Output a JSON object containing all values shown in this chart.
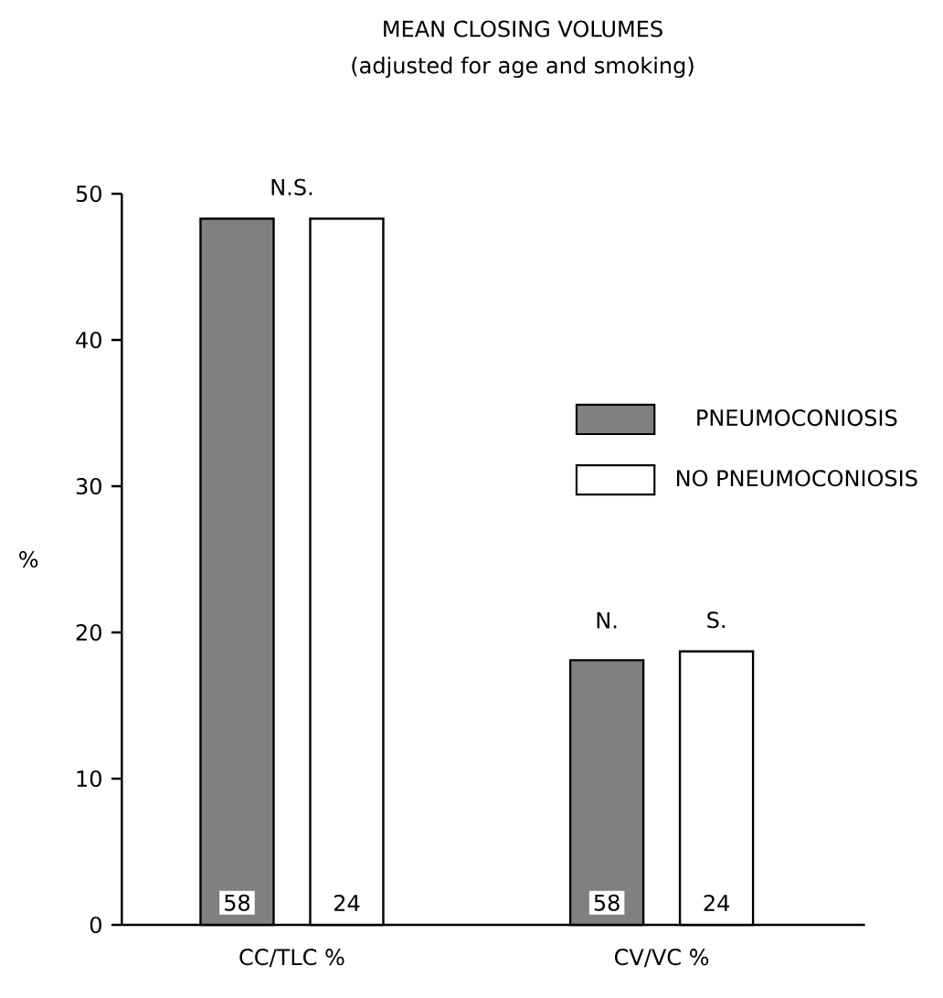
{
  "chart_data": {
    "type": "bar",
    "title": "MEAN CLOSING VOLUMES",
    "subtitle": "(adjusted for age and smoking)",
    "ylabel": "%",
    "categories": [
      "CC/TLC %",
      "CV/VC %"
    ],
    "series": [
      {
        "name": "PNEUMOCONIOSIS",
        "color": "#808080",
        "values": [
          48.3,
          18.1
        ]
      },
      {
        "name": "NO PNEUMOCONIOSIS",
        "color": "#ffffff",
        "values": [
          48.3,
          18.7
        ]
      }
    ],
    "ylim": [
      0,
      50
    ],
    "yticks": [
      0,
      10,
      20,
      30,
      40,
      50
    ],
    "grid": false,
    "legend": "right",
    "annotations": [
      "N.S.",
      "58",
      "24",
      "N.",
      "S.",
      "58",
      "24"
    ]
  }
}
